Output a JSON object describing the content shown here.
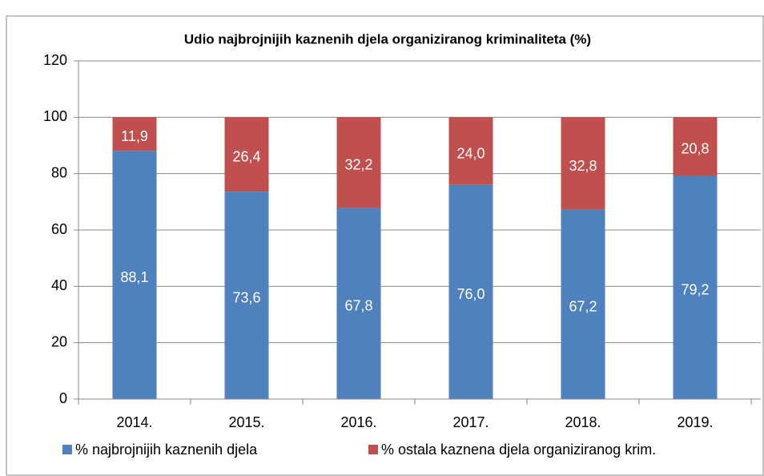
{
  "chart_data": {
    "type": "stacked-bar",
    "title": "Udio najbrojnijih kaznenih djela organiziranog kriminaliteta (%)",
    "categories": [
      "2014.",
      "2015.",
      "2016.",
      "2017.",
      "2018.",
      "2019."
    ],
    "series": [
      {
        "name": "% najbrojnijih kaznenih djela",
        "color": "#4f81bd",
        "values": [
          88.1,
          73.6,
          67.8,
          76.0,
          67.2,
          79.2
        ],
        "value_labels": [
          "88,1",
          "73,6",
          "67,8",
          "76,0",
          "67,2",
          "79,2"
        ]
      },
      {
        "name": "% ostala kaznena djela organiziranog krim.",
        "color": "#c0504d",
        "values": [
          11.9,
          26.4,
          32.2,
          24.0,
          32.8,
          20.8
        ],
        "value_labels": [
          "11,9",
          "26,4",
          "32,2",
          "24,0",
          "32,8",
          "20,8"
        ]
      }
    ],
    "ylim": [
      0,
      120
    ],
    "yticks": [
      0,
      20,
      40,
      60,
      80,
      100,
      120
    ],
    "grid": true,
    "legend": "bottom"
  }
}
